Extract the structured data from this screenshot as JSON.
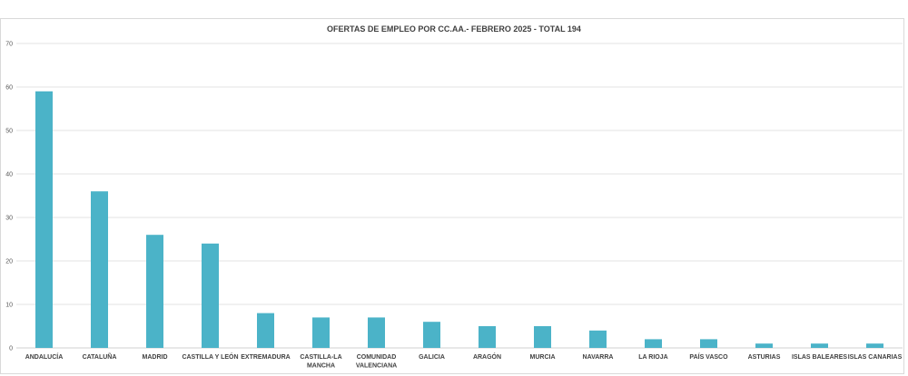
{
  "chart_data": {
    "type": "bar",
    "title": "OFERTAS DE EMPLEO POR CC.AA.- FEBRERO 2025 - TOTAL 194",
    "categories": [
      [
        "ANDALUCÍA"
      ],
      [
        "CATALUÑA"
      ],
      [
        "MADRID"
      ],
      [
        "CASTILLA Y LEÓN"
      ],
      [
        "EXTREMADURA"
      ],
      [
        "CASTILLA-LA",
        "MANCHA"
      ],
      [
        "COMUNIDAD",
        "VALENCIANA"
      ],
      [
        "GALICIA"
      ],
      [
        "ARAGÓN"
      ],
      [
        "MURCIA"
      ],
      [
        "NAVARRA"
      ],
      [
        "LA RIOJA"
      ],
      [
        "PAÍS VASCO"
      ],
      [
        "ASTURIAS"
      ],
      [
        "ISLAS BALEARES"
      ],
      [
        "ISLAS CANARIAS"
      ]
    ],
    "values": [
      59,
      36,
      26,
      24,
      8,
      7,
      7,
      6,
      5,
      5,
      4,
      2,
      2,
      1,
      1,
      1
    ],
    "ylim": [
      0,
      70
    ],
    "yticks": [
      0,
      10,
      20,
      30,
      40,
      50,
      60,
      70
    ],
    "grid": true,
    "bar_color": "#4bb3c8",
    "grid_color": "#e3e3e3"
  }
}
